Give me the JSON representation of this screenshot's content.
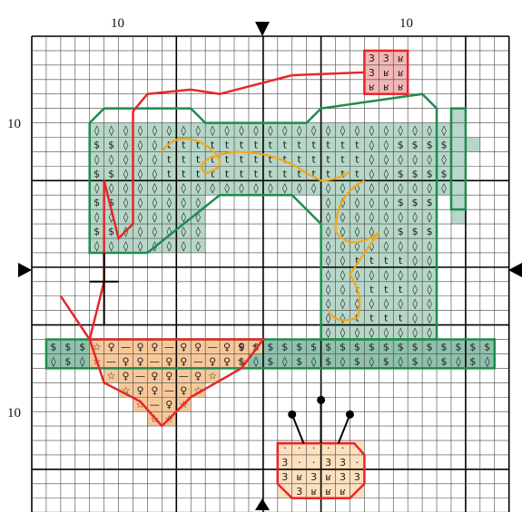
{
  "axis_labels": {
    "top_left": "10",
    "top_right": "10",
    "left_top": "10",
    "left_bottom": "10"
  },
  "colors": {
    "grid_minor": "#444444",
    "grid_major": "#000000",
    "green_fill": "#b7d7c8",
    "green_dark_fill": "#8fc1ad",
    "green_outline": "#1e8c4e",
    "peach_fill": "#f7c99a",
    "peach_light_fill": "#fde0bd",
    "pink_fill": "#f3b7b7",
    "pink_dark_fill": "#e88f98",
    "red_line": "#e8262a",
    "orange_line": "#f2a71b",
    "black_line": "#000000"
  },
  "symbols": {
    "dollar": "$",
    "diamond": "◊",
    "t": "t",
    "female": "♀",
    "star": "☆",
    "dash": "—",
    "three": "3",
    "gamma": "ʁ",
    "dot": "·"
  },
  "markers": [
    "arrow-top",
    "arrow-bottom",
    "arrow-left",
    "arrow-right"
  ]
}
